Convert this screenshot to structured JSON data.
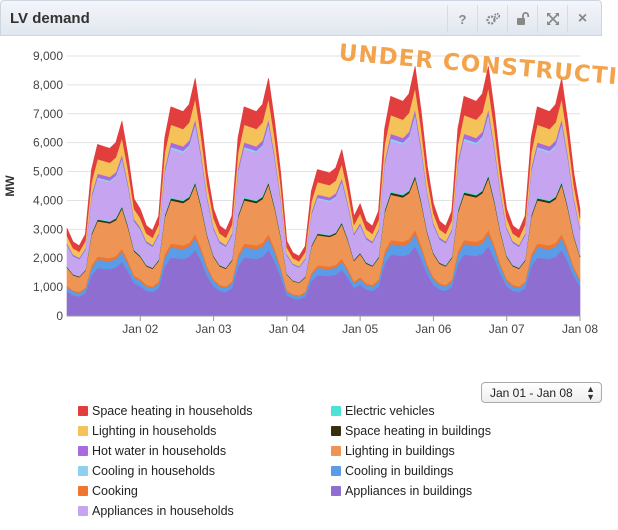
{
  "header": {
    "title": "LV demand",
    "tools": [
      {
        "name": "help-icon",
        "glyph": "?"
      },
      {
        "name": "settings-icon",
        "glyph": "gears"
      },
      {
        "name": "unlock-icon",
        "glyph": "unlock"
      },
      {
        "name": "expand-icon",
        "glyph": "expand"
      },
      {
        "name": "close-icon",
        "glyph": "×"
      }
    ]
  },
  "watermark": "UNDER CONSTRUCTION",
  "date_range": {
    "selected": "Jan 01 - Jan 08"
  },
  "chart_data": {
    "type": "area",
    "stacked": true,
    "ylabel": "MW",
    "ylim": [
      0,
      9000
    ],
    "yticks": [
      0,
      1000,
      2000,
      3000,
      4000,
      5000,
      6000,
      7000,
      8000,
      9000
    ],
    "ytick_labels": [
      "0",
      "1,000",
      "2,000",
      "3,000",
      "4,000",
      "5,000",
      "6,000",
      "7,000",
      "8,000",
      "9,000"
    ],
    "xlim": [
      "Jan 01 00:00",
      "Jan 08 00:00"
    ],
    "xticks": [
      "Jan 02",
      "Jan 03",
      "Jan 04",
      "Jan 05",
      "Jan 06",
      "Jan 07",
      "Jan 08"
    ],
    "grid": true,
    "legend_position": "bottom",
    "x_hours": [
      0,
      2,
      4,
      6,
      8,
      10,
      12,
      14,
      16,
      18,
      20,
      22
    ],
    "daily_profile_fraction_of_peak": [
      0.45,
      0.38,
      0.36,
      0.42,
      0.75,
      0.88,
      0.87,
      0.86,
      0.89,
      1.0,
      0.82,
      0.6
    ],
    "day_scale": [
      0.82,
      1.0,
      1.0,
      0.7,
      1.05,
      1.05,
      1.0
    ],
    "series": [
      {
        "name": "Appliances in buildings",
        "color": "#8e6fd1",
        "peak": 2300
      },
      {
        "name": "Cooling in buildings",
        "color": "#5a9ce8",
        "peak": 400
      },
      {
        "name": "Cooking",
        "color": "#ef7530",
        "peak": 150
      },
      {
        "name": "Lighting in buildings",
        "color": "#ee9555",
        "peak": 1700
      },
      {
        "name": "Space heating in buildings",
        "color": "#3a2e10",
        "peak": 80
      },
      {
        "name": "Electric vehicles",
        "color": "#4de2d4",
        "peak": 40
      },
      {
        "name": "Appliances in households",
        "color": "#c6a4f0",
        "peak": 1900
      },
      {
        "name": "Cooling in households",
        "color": "#8ed0f0",
        "peak": 80
      },
      {
        "name": "Hot water in households",
        "color": "#a96ae0",
        "peak": 180
      },
      {
        "name": "Lighting in households",
        "color": "#f5c25a",
        "peak": 700
      },
      {
        "name": "Space heating in households",
        "color": "#e23e3e",
        "peak": 700
      }
    ]
  },
  "legend": {
    "items": [
      {
        "label": "Space heating in households",
        "color": "#e23e3e"
      },
      {
        "label": "Electric vehicles",
        "color": "#4de2d4"
      },
      {
        "label": "Lighting in households",
        "color": "#f5c25a"
      },
      {
        "label": "Space heating in buildings",
        "color": "#3a2e10"
      },
      {
        "label": "Hot water in households",
        "color": "#a96ae0"
      },
      {
        "label": "Lighting in buildings",
        "color": "#ee9555"
      },
      {
        "label": "Cooling in households",
        "color": "#8ed0f0"
      },
      {
        "label": "Cooling in buildings",
        "color": "#5a9ce8"
      },
      {
        "label": "Cooking",
        "color": "#ef7530"
      },
      {
        "label": "Appliances in buildings",
        "color": "#8e6fd1"
      },
      {
        "label": "Appliances in households",
        "color": "#c6a4f0"
      }
    ]
  }
}
